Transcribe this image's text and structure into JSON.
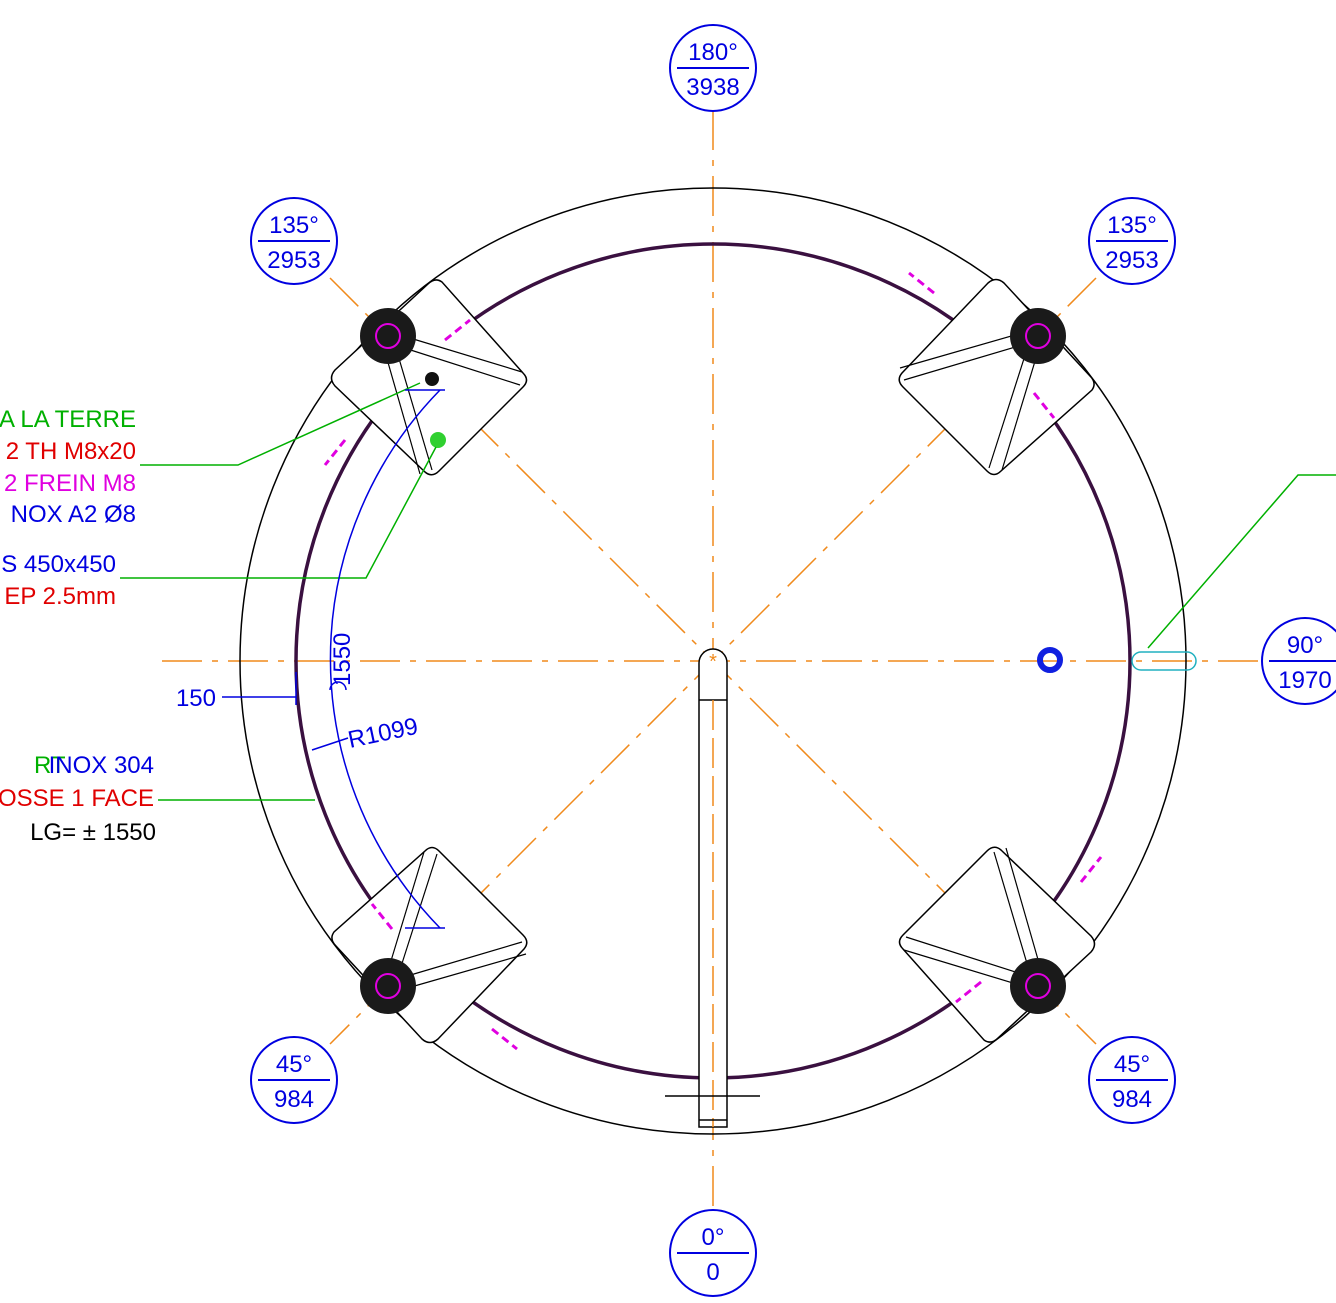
{
  "balloons": [
    {
      "angle": "180°",
      "dist": "3938"
    },
    {
      "angle": "135°",
      "dist": "2953"
    },
    {
      "angle": "135°",
      "dist": "2953"
    },
    {
      "angle": "90°",
      "dist": "1970"
    },
    {
      "angle": "45°",
      "dist": "984"
    },
    {
      "angle": "45°",
      "dist": "984"
    },
    {
      "angle": "0°",
      "dist": "0"
    }
  ],
  "notes": {
    "earth": [
      "A LA TERRE",
      "2 TH M8x20",
      "2 FREIN M8",
      "NOX A2 Ø8"
    ],
    "pad": [
      "S 450x450",
      "EP 2.5mm"
    ],
    "ring": [
      "RT",
      "INOX 304",
      "OSSE 1 FACE",
      "LG= ± 1550"
    ]
  },
  "dimensions": {
    "width": "150",
    "arc": "1550",
    "radius": "R1099"
  }
}
